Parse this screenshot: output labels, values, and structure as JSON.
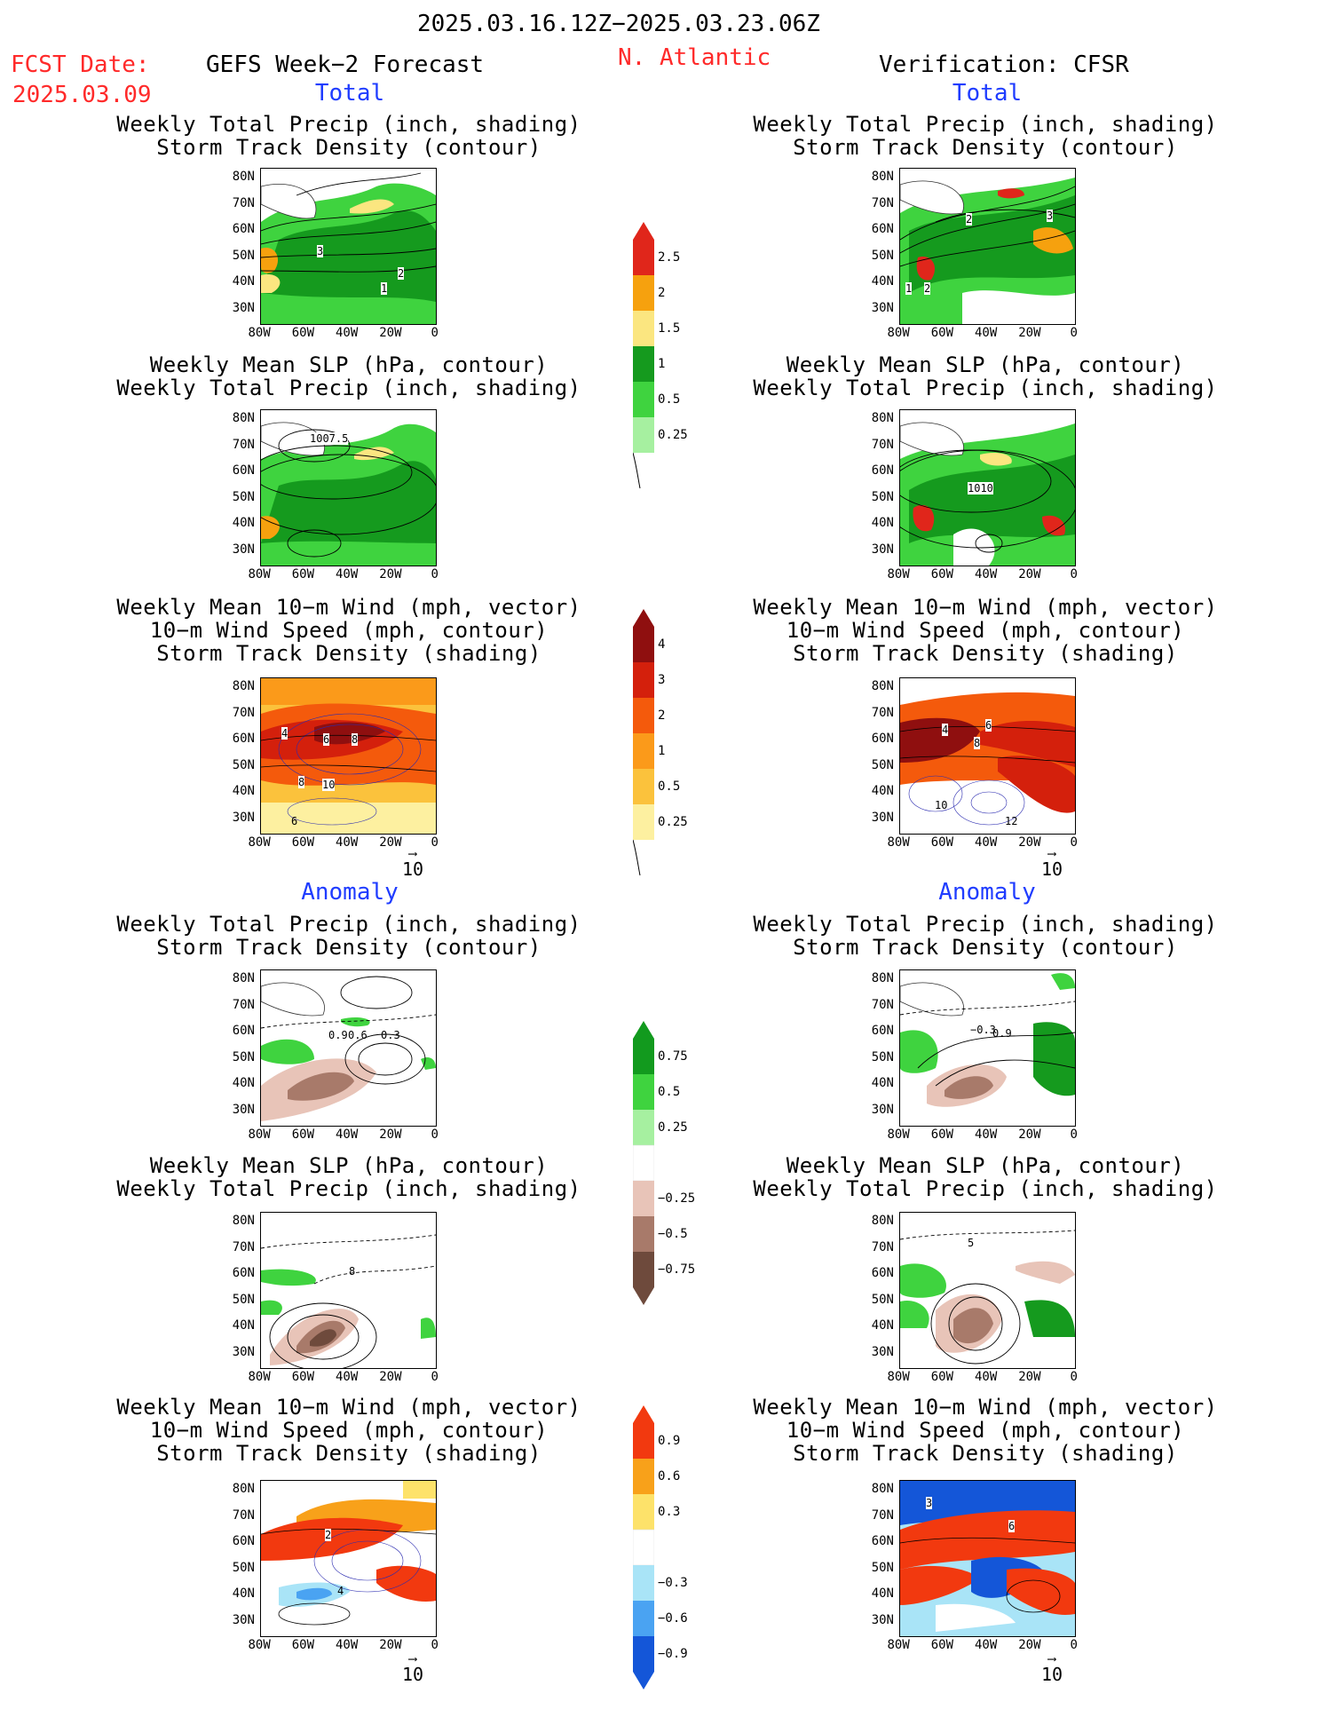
{
  "header": {
    "valid_period": "2025.03.16.12Z−2025.03.23.06Z",
    "fcst_label": "FCST Date:",
    "fcst_date": "2025.03.09",
    "left_model": "GEFS Week−2 Forecast",
    "region": "N. Atlantic",
    "right_model": "Verification: CFSR"
  },
  "sections": {
    "total": "Total",
    "anomaly": "Anomaly"
  },
  "panel_titles": {
    "precip_track": [
      "Weekly Total Precip (inch, shading)",
      "Storm Track Density (contour)"
    ],
    "slp_precip": [
      "Weekly Mean SLP (hPa, contour)",
      "Weekly Total Precip (inch, shading)"
    ],
    "wind_track": [
      "Weekly Mean 10−m Wind (mph, vector)",
      "10−m Wind Speed (mph, contour)",
      "Storm Track Density (shading)"
    ]
  },
  "axes": {
    "lat_labels": [
      "80N",
      "70N",
      "60N",
      "50N",
      "40N",
      "30N"
    ],
    "lon_labels": [
      "80W",
      "60W",
      "40W",
      "20W",
      "0"
    ]
  },
  "vector_ref": "10",
  "colorbars": {
    "precip_total": {
      "labels": [
        "2.5",
        "2",
        "1.5",
        "1",
        "0.5",
        "0.25"
      ],
      "colors": [
        "#e0261b",
        "#f6a10e",
        "#fbe680",
        "#159a1e",
        "#3fd33f",
        "#a6f0a0"
      ]
    },
    "track_total": {
      "labels": [
        "4",
        "3",
        "2",
        "1",
        "0.5",
        "0.25"
      ],
      "colors": [
        "#8f0f0f",
        "#d4200c",
        "#f45a0c",
        "#fb9a1a",
        "#fbc23c",
        "#fdf0a0"
      ]
    },
    "precip_anom": {
      "labels": [
        "0.75",
        "0.5",
        "0.25",
        "−0.25",
        "−0.5",
        "−0.75"
      ],
      "colors": [
        "#129a1e",
        "#3fd33f",
        "#a6f0a0",
        "#ffffff",
        "#e8c4b8",
        "#a87a6a",
        "#6e4a3c"
      ]
    },
    "track_anom": {
      "labels": [
        "0.9",
        "0.6",
        "0.3",
        "−0.3",
        "−0.6",
        "−0.9"
      ],
      "colors": [
        "#f2390f",
        "#f8a11a",
        "#fde26a",
        "#ffffff",
        "#a9e4f7",
        "#4aa3f2",
        "#1456d8"
      ]
    }
  },
  "contour_labels": {
    "left_total_track": [
      "3",
      "2",
      "1"
    ],
    "right_total_track": [
      "2",
      "3",
      "1",
      "2"
    ],
    "left_total_slp": [
      "1007.5"
    ],
    "right_total_slp": [
      "1010"
    ],
    "left_total_wind": [
      "4",
      "6",
      "8",
      "8",
      "10",
      "6"
    ],
    "right_total_wind": [
      "4",
      "6",
      "8",
      "10",
      "12"
    ],
    "left_anom_track": [
      "0.9",
      "0.6",
      "0.3"
    ],
    "right_anom_track": [
      "−0.3",
      "0.9"
    ],
    "left_anom_slp": [
      "8"
    ],
    "right_anom_slp": [
      "5"
    ],
    "left_anom_wind": [
      "2",
      "4"
    ],
    "right_anom_wind": [
      "3",
      "6"
    ]
  }
}
